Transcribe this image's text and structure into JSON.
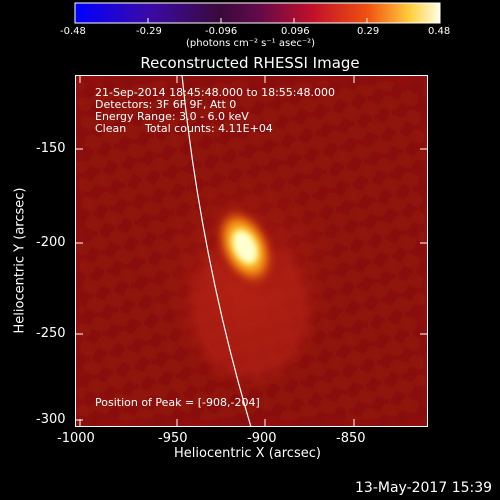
{
  "colorbar": {
    "ticks": [
      "-0.48",
      "-0.29",
      "-0.096",
      "0.096",
      "0.29",
      "0.48"
    ],
    "unit_label": "(photons cm⁻² s⁻¹ asec⁻²)"
  },
  "title": "Reconstructed RHESSI Image",
  "annotations": {
    "time_range": "21-Sep-2014 18:45:48.000 to 18:55:48.000",
    "detectors": "Detectors: 3F 6F 9F, Att 0",
    "energy": "Energy Range: 3.0 - 6.0 keV",
    "method": "Clean",
    "counts": "Total counts: 4.11E+04",
    "peak": "Position of Peak = [-908,-204]"
  },
  "axes": {
    "xlabel": "Heliocentric X (arcsec)",
    "ylabel": "Heliocentric Y (arcsec)",
    "xticks": [
      "-1000",
      "-950",
      "-900",
      "-850"
    ],
    "yticks": [
      "-150",
      "-200",
      "-250",
      "-300"
    ]
  },
  "footer_date": "13-May-2017 15:39",
  "colors": {
    "background": "#000000",
    "image_base": "#8a0e0a",
    "peak": "#ffffa0",
    "limb_line": "#ffffff"
  },
  "image_content": {
    "peak_position_arcsec": [
      -908,
      -204
    ],
    "colormap": "blue-purple-red-yellow-white"
  }
}
